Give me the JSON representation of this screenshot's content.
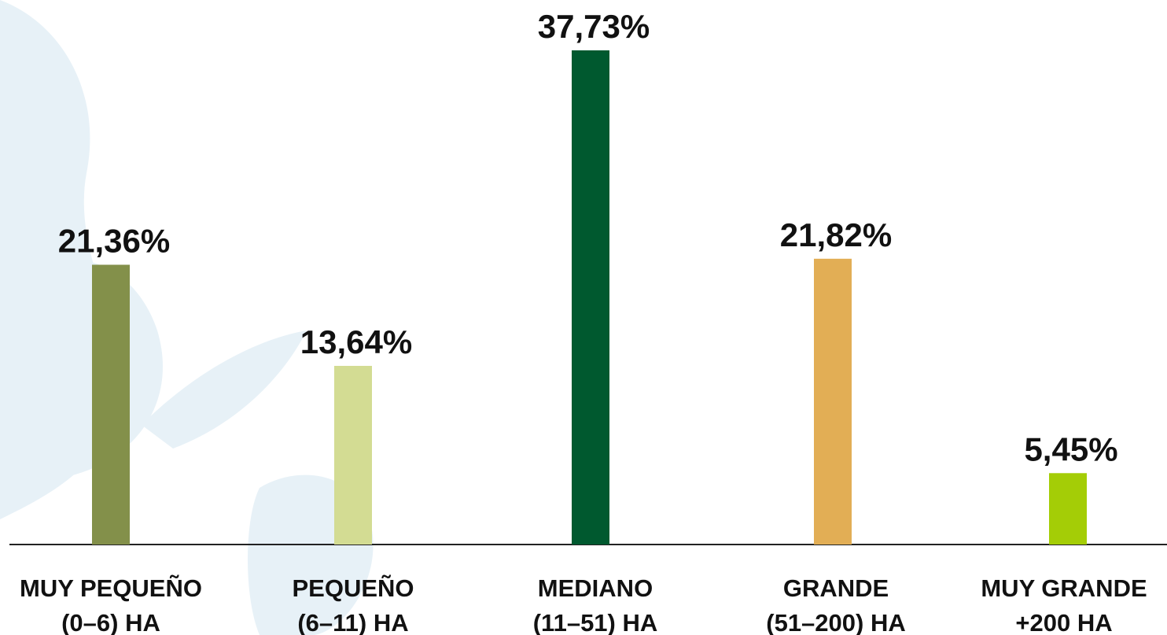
{
  "chart_data": {
    "type": "bar",
    "categories": [
      "MUY PEQUEÑO\n(0–6) HA",
      "PEQUEÑO\n(6–11) HA",
      "MEDIANO\n(11–51) HA",
      "GRANDE\n(51–200) HA",
      "MUY GRANDE\n+200 HA"
    ],
    "values": [
      21.36,
      13.64,
      37.73,
      21.82,
      5.45
    ],
    "value_labels": [
      "21,36%",
      "13,64%",
      "37,73%",
      "21,82%",
      "5,45%"
    ],
    "colors": [
      "#83904a",
      "#d3dc93",
      "#00592f",
      "#e2ae55",
      "#a4cd06"
    ]
  }
}
